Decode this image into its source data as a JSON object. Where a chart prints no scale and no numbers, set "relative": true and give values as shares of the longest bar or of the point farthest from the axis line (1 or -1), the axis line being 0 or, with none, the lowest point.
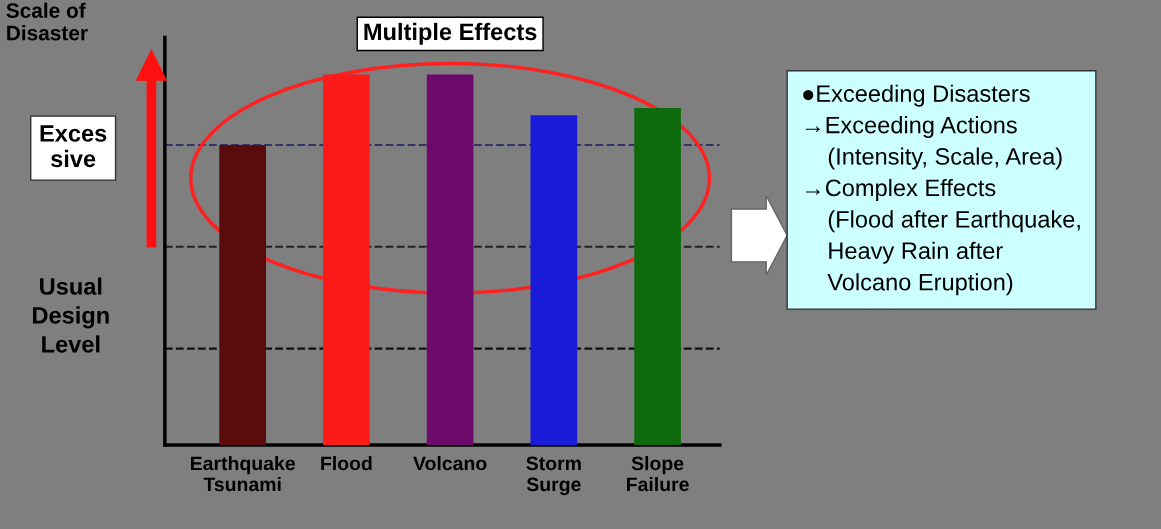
{
  "chart_data": {
    "type": "bar",
    "relative": true,
    "ylabel": "Scale of\nDisaster",
    "categories": [
      "Earthquake\nTsunami",
      "Flood",
      "Volcano",
      "Storm\nSurge",
      "Slope\nFailure"
    ],
    "values": [
      0.81,
      1,
      1,
      0.89,
      0.91
    ],
    "colors": [
      "#5a0b0b",
      "#ff1a1a",
      "#6b0a6b",
      "#1a1ad9",
      "#0d6b0d"
    ],
    "ref_lines": [
      {
        "axis": "y",
        "value": 0.81,
        "color": "#333366",
        "line_style": "dashed"
      },
      {
        "axis": "y",
        "value": 0.535,
        "color": "#222222",
        "line_style": "dashed"
      },
      {
        "axis": "y",
        "value": 0.26,
        "color": "#111111",
        "line_style": "dashed"
      }
    ],
    "annotations": [
      "Multiple Effects",
      "Exces\nsive",
      "Usual\nDesign\nLevel",
      "●Exceeding Disasters\n→Exceeding Actions\n    (Intensity, Scale, Area)\n→Complex Effects\n    (Flood after Earthquake,\n    Heavy Rain after\n    Volcano Eruption)"
    ],
    "grid": false
  }
}
